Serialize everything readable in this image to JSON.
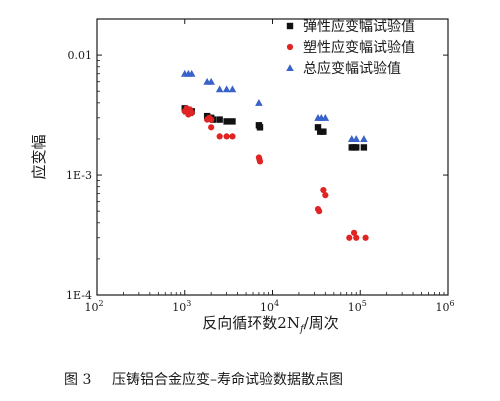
{
  "chart_data": {
    "type": "scatter",
    "xlabel": "反向循环数2N",
    "xlabel_subscript": "f",
    "xlabel_suffix": "/周次",
    "ylabel": "应变幅",
    "x_scale": "log",
    "y_scale": "log",
    "xlim": [
      100,
      1000000
    ],
    "ylim": [
      0.0001,
      0.02
    ],
    "x_ticks": [
      {
        "value": 100,
        "label": "10",
        "exp": "2"
      },
      {
        "value": 1000,
        "label": "10",
        "exp": "3"
      },
      {
        "value": 10000,
        "label": "10",
        "exp": "4"
      },
      {
        "value": 100000,
        "label": "10",
        "exp": "5"
      },
      {
        "value": 1000000,
        "label": "10",
        "exp": "6"
      }
    ],
    "y_ticks": [
      {
        "value": 0.01,
        "label": "0.01"
      },
      {
        "value": 0.001,
        "label": "1E-3"
      },
      {
        "value": 0.0001,
        "label": "1E-4"
      }
    ],
    "legend_position": "top-right",
    "series": [
      {
        "name": "弹性应变幅试验值",
        "marker": "square",
        "color": "#111111",
        "points": [
          {
            "x": 1000,
            "y": 0.0036
          },
          {
            "x": 1050,
            "y": 0.0034
          },
          {
            "x": 1100,
            "y": 0.0035
          },
          {
            "x": 1150,
            "y": 0.0033
          },
          {
            "x": 1200,
            "y": 0.0034
          },
          {
            "x": 1800,
            "y": 0.0031
          },
          {
            "x": 1900,
            "y": 0.003
          },
          {
            "x": 2000,
            "y": 0.003
          },
          {
            "x": 2100,
            "y": 0.0029
          },
          {
            "x": 2500,
            "y": 0.0029
          },
          {
            "x": 3000,
            "y": 0.0028
          },
          {
            "x": 3500,
            "y": 0.0028
          },
          {
            "x": 7000,
            "y": 0.0026
          },
          {
            "x": 7200,
            "y": 0.0025
          },
          {
            "x": 33000,
            "y": 0.0025
          },
          {
            "x": 35000,
            "y": 0.0023
          },
          {
            "x": 38000,
            "y": 0.0023
          },
          {
            "x": 80000,
            "y": 0.0017
          },
          {
            "x": 85000,
            "y": 0.0017
          },
          {
            "x": 90000,
            "y": 0.0017
          },
          {
            "x": 110000,
            "y": 0.0017
          }
        ]
      },
      {
        "name": "塑性应变幅试验值",
        "marker": "circle",
        "color": "#e02424",
        "points": [
          {
            "x": 1000,
            "y": 0.0034
          },
          {
            "x": 1050,
            "y": 0.0036
          },
          {
            "x": 1100,
            "y": 0.0032
          },
          {
            "x": 1150,
            "y": 0.0035
          },
          {
            "x": 1200,
            "y": 0.0033
          },
          {
            "x": 1800,
            "y": 0.0029
          },
          {
            "x": 1900,
            "y": 0.003
          },
          {
            "x": 2000,
            "y": 0.0029
          },
          {
            "x": 2000,
            "y": 0.0025
          },
          {
            "x": 2500,
            "y": 0.0021
          },
          {
            "x": 3000,
            "y": 0.0021
          },
          {
            "x": 3500,
            "y": 0.0021
          },
          {
            "x": 7000,
            "y": 0.0014
          },
          {
            "x": 7100,
            "y": 0.00135
          },
          {
            "x": 7200,
            "y": 0.0013
          },
          {
            "x": 33000,
            "y": 0.00052
          },
          {
            "x": 34000,
            "y": 0.0005
          },
          {
            "x": 38000,
            "y": 0.00075
          },
          {
            "x": 40000,
            "y": 0.00068
          },
          {
            "x": 75000,
            "y": 0.0003
          },
          {
            "x": 85000,
            "y": 0.00033
          },
          {
            "x": 90000,
            "y": 0.0003
          },
          {
            "x": 115000,
            "y": 0.0003
          }
        ]
      },
      {
        "name": "总应变幅试验值",
        "marker": "triangle",
        "color": "#3a63c9",
        "points": [
          {
            "x": 1000,
            "y": 0.007
          },
          {
            "x": 1100,
            "y": 0.007
          },
          {
            "x": 1200,
            "y": 0.007
          },
          {
            "x": 1800,
            "y": 0.006
          },
          {
            "x": 2000,
            "y": 0.006
          },
          {
            "x": 2500,
            "y": 0.0052
          },
          {
            "x": 3000,
            "y": 0.0052
          },
          {
            "x": 3500,
            "y": 0.0052
          },
          {
            "x": 7000,
            "y": 0.004
          },
          {
            "x": 33000,
            "y": 0.003
          },
          {
            "x": 36000,
            "y": 0.003
          },
          {
            "x": 40000,
            "y": 0.003
          },
          {
            "x": 80000,
            "y": 0.002
          },
          {
            "x": 90000,
            "y": 0.002
          },
          {
            "x": 110000,
            "y": 0.002
          }
        ]
      }
    ]
  },
  "caption": {
    "figure_number": "图 3",
    "text": "压铸铝合金应变–寿命试验数据散点图"
  }
}
